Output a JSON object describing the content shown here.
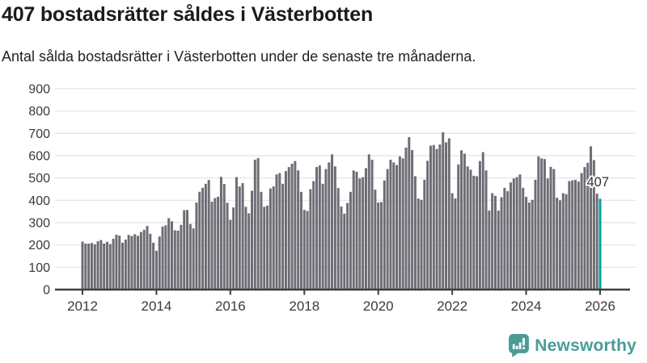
{
  "header": {
    "title": "407 bostadsrätter såldes i Västerbotten",
    "subtitle": "Antal sålda bostadsrätter i Västerbotten under de senaste tre månaderna."
  },
  "chart_data": {
    "type": "bar",
    "title": "407 bostadsrätter såldes i Västerbotten",
    "subtitle": "Antal sålda bostadsrätter i Västerbotten under de senaste tre månaderna.",
    "x_start": "2012-01",
    "frequency": "monthly",
    "xlabel": "",
    "ylabel": "",
    "ylim": [
      0,
      900
    ],
    "grid": true,
    "legend": null,
    "xticks": [
      2012,
      2014,
      2016,
      2018,
      2020,
      2022,
      2024,
      2026
    ],
    "yticks": [
      0,
      100,
      200,
      300,
      400,
      500,
      600,
      700,
      800,
      900
    ],
    "values": [
      215,
      206,
      206,
      209,
      203,
      217,
      222,
      206,
      214,
      204,
      228,
      246,
      242,
      210,
      224,
      245,
      240,
      248,
      241,
      258,
      268,
      285,
      250,
      210,
      174,
      238,
      282,
      288,
      320,
      306,
      266,
      264,
      290,
      356,
      357,
      294,
      274,
      390,
      438,
      456,
      474,
      491,
      394,
      410,
      416,
      505,
      473,
      389,
      313,
      368,
      504,
      462,
      477,
      371,
      342,
      443,
      582,
      589,
      438,
      371,
      376,
      453,
      462,
      516,
      522,
      474,
      531,
      549,
      564,
      576,
      534,
      438,
      357,
      352,
      450,
      486,
      549,
      556,
      474,
      540,
      570,
      606,
      552,
      455,
      372,
      340,
      388,
      438,
      534,
      528,
      498,
      504,
      544,
      606,
      582,
      448,
      390,
      392,
      489,
      540,
      582,
      570,
      558,
      597,
      588,
      636,
      683,
      625,
      508,
      408,
      402,
      492,
      577,
      645,
      648,
      630,
      650,
      705,
      660,
      678,
      432,
      408,
      561,
      624,
      609,
      552,
      537,
      510,
      508,
      576,
      616,
      534,
      354,
      432,
      420,
      354,
      414,
      456,
      441,
      480,
      498,
      504,
      516,
      456,
      416,
      390,
      402,
      492,
      597,
      588,
      585,
      498,
      550,
      540,
      412,
      400,
      432,
      428,
      486,
      490,
      492,
      484,
      522,
      549,
      568,
      642,
      580,
      430,
      407
    ],
    "highlight": {
      "index": 168,
      "value": 407,
      "label": "407"
    },
    "colors": {
      "bar": "#6E6D75",
      "highlight": "#00A29B",
      "grid": "#E7E7E7",
      "axis": "#3E3E43",
      "tick_label": "#3B3B3B",
      "annotation": "#303030"
    }
  },
  "branding": {
    "name": "Newsworthy",
    "color": "#4A9C96"
  }
}
